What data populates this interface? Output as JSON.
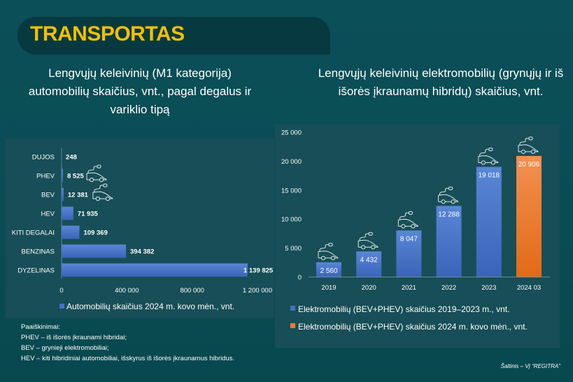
{
  "header": {
    "title": "TRANSPORTAS"
  },
  "chart_data": [
    {
      "type": "bar",
      "orientation": "horizontal",
      "title": "Lengvųjų keleivinių (M1 kategorija) automobilių skaičius, vnt., pagal degalus ir variklio tipą",
      "categories": [
        "DUJOS",
        "PHEV",
        "BEV",
        "HEV",
        "KITI DEGALAI",
        "BENZINAS",
        "DYZELINAS"
      ],
      "values": [
        248,
        8525,
        12381,
        71935,
        109369,
        394382,
        1139825
      ],
      "value_labels": [
        "248",
        "8 525",
        "12 381",
        "71 935",
        "109 369",
        "394 382",
        "1 139 825"
      ],
      "ev_icon_categories": [
        "PHEV",
        "BEV"
      ],
      "xlim": [
        0,
        1200000
      ],
      "ticks": [
        0,
        400000,
        800000,
        1200000
      ],
      "tick_labels": [
        "0",
        "400 000",
        "800 000",
        "1 200 000"
      ],
      "legend": [
        "Automobilių skaičius 2024 m. kovo mėn., vnt."
      ],
      "legend_placement": "bottom",
      "color": "#4472c4"
    },
    {
      "type": "bar",
      "title": "Lengvųjų keleivinių elektromobilių (grynųjų ir iš išorės įkraunamų hibridų) skaičius, vnt.",
      "categories": [
        "2019",
        "2020",
        "2021",
        "2022",
        "2023",
        "2024 03"
      ],
      "values": [
        2560,
        4432,
        8047,
        12288,
        19018,
        20906
      ],
      "value_labels": [
        "2 560",
        "4 432",
        "8 047",
        "12 288",
        "19 018",
        "20 906"
      ],
      "series_index": [
        0,
        0,
        0,
        0,
        0,
        1
      ],
      "ylim": [
        0,
        25000
      ],
      "ticks": [
        0,
        5000,
        10000,
        15000,
        20000,
        25000
      ],
      "tick_labels": [
        "0",
        "5 000",
        "10 000",
        "15 000",
        "20 000",
        "25 000"
      ],
      "legend": [
        "Elektromobilių (BEV+PHEV) skaičius 2019–2023 m., vnt.",
        "Elektromobilių (BEV+PHEV) skaičius 2024 m. kovo mėn., vnt."
      ],
      "legend_placement": "bottom",
      "colors": [
        "#4472c4",
        "#ed7d31"
      ]
    }
  ],
  "notes": {
    "heading": "Paaiškinimai:",
    "lines": [
      "PHEV – iš išorės įkraunami hibridai;",
      "BEV – grynieji elektromobiliai;",
      "HEV – kiti hibridiniai automobiliai, išskyrus iš išorės įkraunamus hibridus."
    ]
  },
  "source": "Šaltinis – VĮ “REGITRA”"
}
